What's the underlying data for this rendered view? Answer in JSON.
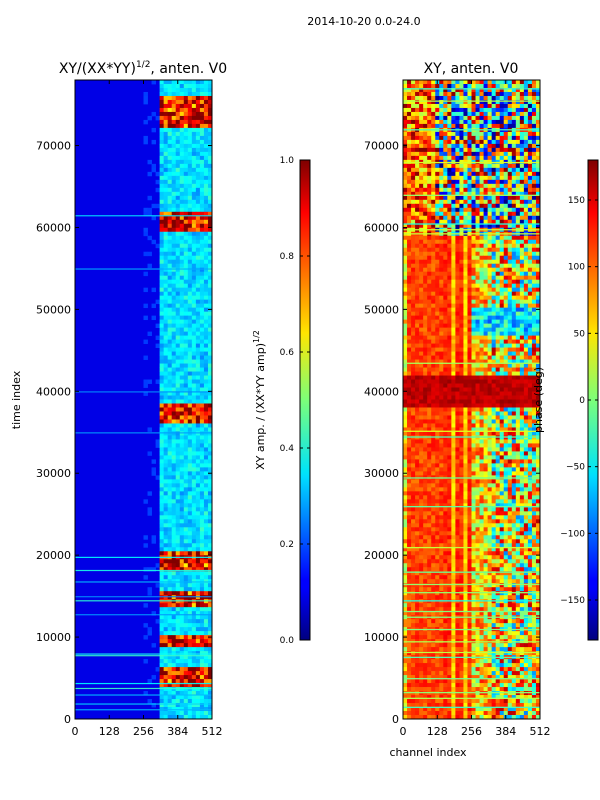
{
  "suptitle": "2014-10-20 0.0-24.0",
  "chart_data": [
    {
      "type": "heatmap",
      "title": "XY/(XX*YY)^1/2, anten. V0",
      "title_main": "XY/(XX*YY)",
      "title_sup": "1/2",
      "title_rest": ", anten. V0",
      "xlabel": "",
      "ylabel": "time index",
      "xlim": [
        0,
        512
      ],
      "ylim": [
        0,
        78000
      ],
      "xticks": [
        0,
        128,
        256,
        384,
        512
      ],
      "yticks": [
        0,
        10000,
        20000,
        30000,
        40000,
        50000,
        60000,
        70000
      ],
      "colormap": "jet",
      "colorbar": {
        "label_main": "XY amp. / (XX*YY amp)",
        "label_sup": "1/2",
        "range": [
          0.0,
          1.0
        ],
        "ticks": [
          "0.0",
          "0.2",
          "0.4",
          "0.6",
          "0.8",
          "1.0"
        ],
        "tick_values": [
          0.0,
          0.2,
          0.4,
          0.6,
          0.8,
          1.0
        ]
      }
    },
    {
      "type": "heatmap",
      "title": "XY, anten. V0",
      "xlabel": "channel index",
      "ylabel": "",
      "xlim": [
        0,
        512
      ],
      "ylim": [
        0,
        78000
      ],
      "xticks": [
        0,
        128,
        256,
        384,
        512
      ],
      "yticks": [
        0,
        10000,
        20000,
        30000,
        40000,
        50000,
        60000,
        70000
      ],
      "colormap": "jet",
      "colorbar": {
        "label": "phase (deg)",
        "range": [
          -180,
          180
        ],
        "ticks": [
          "−150",
          "−100",
          "−50",
          "0",
          "50",
          "100",
          "150"
        ],
        "tick_values": [
          -150,
          -100,
          -50,
          0,
          50,
          100,
          150
        ]
      }
    }
  ]
}
